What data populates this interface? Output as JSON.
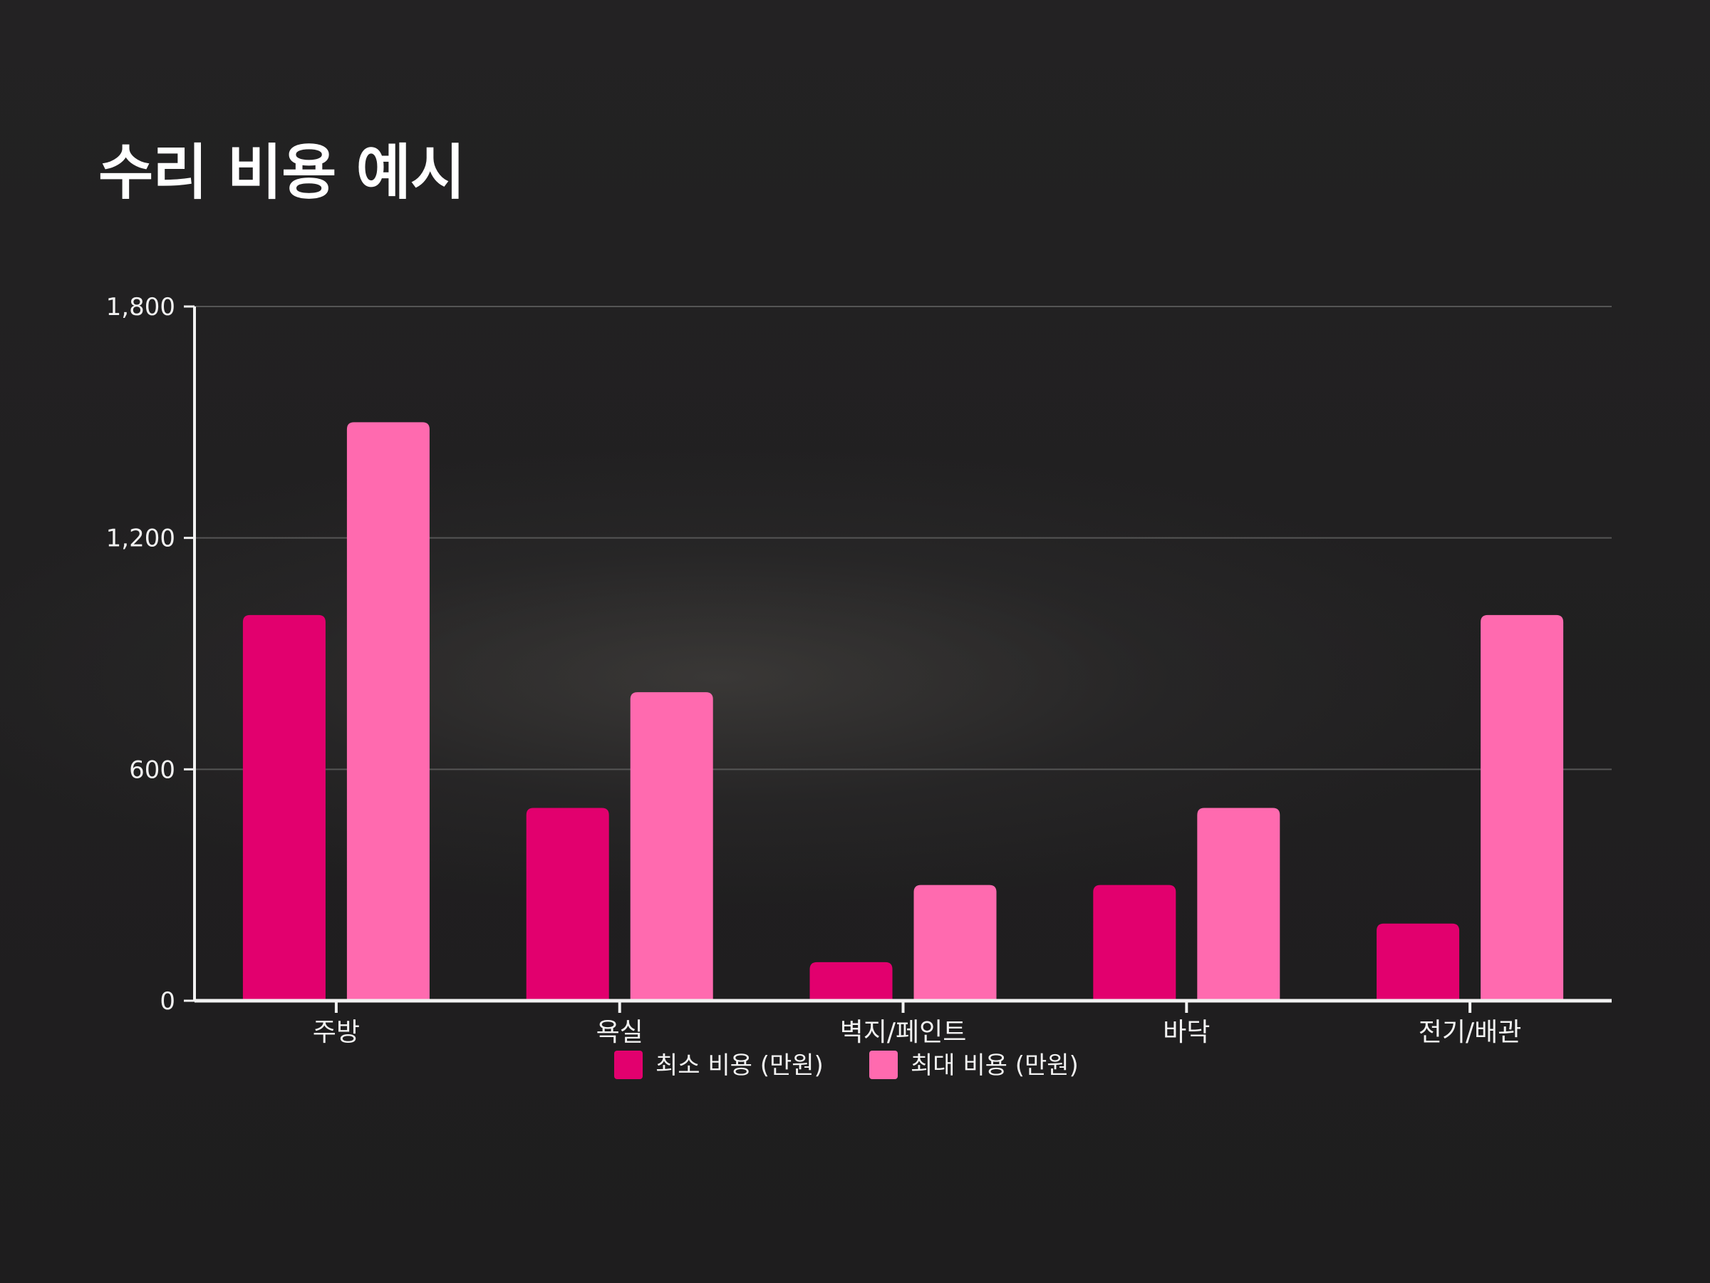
{
  "title": "수리 비용 예시",
  "colors": {
    "background": "#1f1e1f",
    "grid": "#555555",
    "axis": "#f2f2f2",
    "text": "#f2f2f2",
    "series_min": "#e2006e",
    "series_max": "#ff6aaf"
  },
  "chart_data": {
    "type": "bar",
    "title": "수리 비용 예시",
    "xlabel": "",
    "ylabel": "",
    "categories": [
      "주방",
      "욕실",
      "벽지/페인트",
      "바닥",
      "전기/배관"
    ],
    "series": [
      {
        "name": "최소 비용 (만원)",
        "color": "#e2006e",
        "values": [
          1000,
          500,
          100,
          300,
          200
        ]
      },
      {
        "name": "최대 비용 (만원)",
        "color": "#ff6aaf",
        "values": [
          1500,
          800,
          300,
          500,
          1000
        ]
      }
    ],
    "ylim": [
      0,
      1800
    ],
    "yticks": [
      0,
      600,
      1200,
      1800
    ],
    "ytick_labels": [
      "0",
      "600",
      "1,200",
      "1,800"
    ],
    "grid": true,
    "legend_position": "bottom-center"
  }
}
